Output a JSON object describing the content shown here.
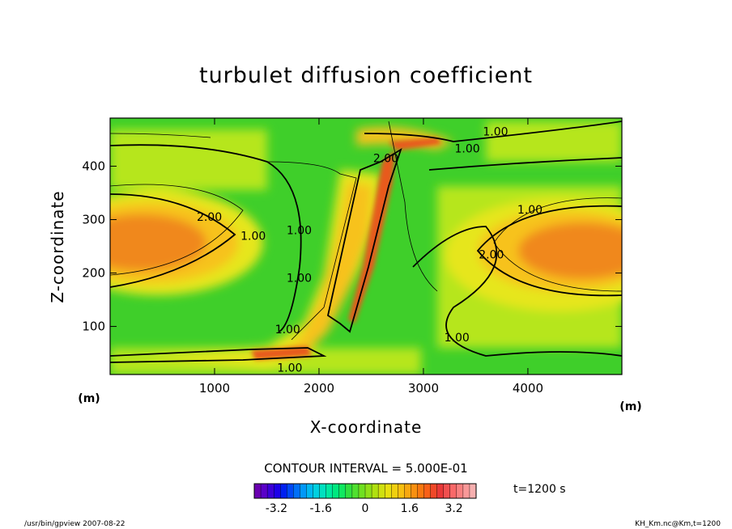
{
  "chart_data": {
    "type": "heatmap",
    "title": "turbulet diffusion coefficient",
    "xlabel": "X-coordinate",
    "ylabel": "Z-coordinate",
    "x_unit": "(m)",
    "y_unit": "(m)",
    "xlim": [
      0,
      4900
    ],
    "ylim": [
      10,
      490
    ],
    "x_ticks": [
      1000,
      2000,
      3000,
      4000
    ],
    "y_ticks": [
      100,
      200,
      300,
      400
    ],
    "contour_interval_label": "CONTOUR INTERVAL = 5.000E-01",
    "contour_labels": [
      {
        "text": "1.00",
        "x": 3690,
        "y": 465
      },
      {
        "text": "1.00",
        "x": 3420,
        "y": 433
      },
      {
        "text": "2.00",
        "x": 2640,
        "y": 415
      },
      {
        "text": "1.00",
        "x": 4020,
        "y": 319
      },
      {
        "text": "2.00",
        "x": 950,
        "y": 305
      },
      {
        "text": "1.00",
        "x": 1370,
        "y": 270
      },
      {
        "text": "1.00",
        "x": 1810,
        "y": 280
      },
      {
        "text": "2.00",
        "x": 3650,
        "y": 235
      },
      {
        "text": "1.00",
        "x": 1810,
        "y": 191
      },
      {
        "text": "1.00",
        "x": 1700,
        "y": 95
      },
      {
        "text": "1.00",
        "x": 3320,
        "y": 80
      },
      {
        "text": "1.00",
        "x": 1720,
        "y": 23
      }
    ],
    "colorbar": {
      "min": -4.0,
      "max": 4.0,
      "tick_labels": [
        "-3.2",
        "-1.6",
        "0",
        "1.6",
        "3.2"
      ],
      "tick_values": [
        -3.2,
        -1.6,
        0,
        1.6,
        3.2
      ]
    },
    "time_label": "t=1200 s"
  },
  "footer": {
    "left": "/usr/bin/gpview  2007-08-22",
    "right": "KH_Km.nc@Km,t=1200"
  }
}
